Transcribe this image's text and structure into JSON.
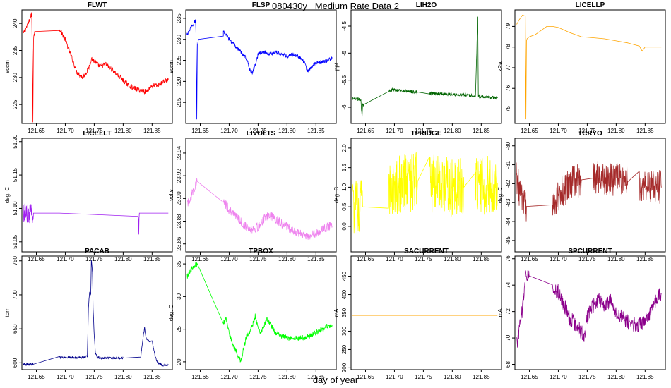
{
  "figure": {
    "title": "080430y   Medium Rate Data 2",
    "xlabel": "day of year"
  },
  "chart_data": [
    {
      "type": "line",
      "title": "FLWT",
      "ylabel": "sccm",
      "color": "#ff0000",
      "xlim": [
        121.625,
        121.885
      ],
      "ylim": [
        221.5,
        242.5
      ],
      "xticks": [
        "121.65",
        "121.70",
        "121.75",
        "121.80",
        "121.85"
      ],
      "yticks": [
        225,
        230,
        235,
        240
      ],
      "x": [
        121.627,
        121.633,
        121.638,
        121.642,
        121.643,
        121.644,
        121.645,
        121.647,
        121.69,
        121.69,
        121.7,
        121.71,
        121.72,
        121.73,
        121.74,
        121.745,
        121.75,
        121.76,
        121.77,
        121.78,
        121.79,
        121.8,
        121.81,
        121.82,
        121.83,
        121.84,
        121.85,
        121.86,
        121.87,
        121.878
      ],
      "y": [
        238,
        239.3,
        240.5,
        241.8,
        234.8,
        222,
        237,
        238.5,
        238.8,
        239,
        237,
        234,
        231,
        230,
        231.5,
        233.5,
        233,
        232,
        232.5,
        231.5,
        230.5,
        229.5,
        228.5,
        228,
        227.6,
        227.4,
        228.5,
        228.5,
        229.3,
        229.5
      ],
      "noise": 0.45
    },
    {
      "type": "line",
      "title": "FLSP",
      "ylabel": "sccm",
      "color": "#0000ff",
      "xlim": [
        121.625,
        121.885
      ],
      "ylim": [
        210,
        237
      ],
      "xticks": [
        "121.65",
        "121.70",
        "121.75",
        "121.80",
        "121.85"
      ],
      "yticks": [
        215,
        220,
        225,
        230,
        235
      ],
      "x": [
        121.627,
        121.633,
        121.638,
        121.642,
        121.643,
        121.644,
        121.645,
        121.647,
        121.69,
        121.69,
        121.7,
        121.71,
        121.72,
        121.73,
        121.735,
        121.74,
        121.745,
        121.75,
        121.76,
        121.77,
        121.78,
        121.79,
        121.8,
        121.81,
        121.82,
        121.83,
        121.835,
        121.84,
        121.85,
        121.86,
        121.87,
        121.878
      ],
      "y": [
        231,
        232.5,
        233.5,
        234.5,
        229,
        211,
        229,
        230,
        231,
        232,
        230,
        228.5,
        227,
        225.5,
        223,
        222,
        224,
        226.5,
        227,
        226.5,
        227,
        226.5,
        226,
        226.5,
        226,
        224.5,
        222.5,
        223,
        224.5,
        224.5,
        225,
        225.5
      ],
      "noise": 0.45
    },
    {
      "type": "line",
      "title": "LIH2O",
      "ylabel": "ppt",
      "color": "#006400",
      "xlim": [
        121.625,
        121.885
      ],
      "ylim": [
        -6.3,
        -4.2
      ],
      "xticks": [
        "121.65",
        "121.70",
        "121.75",
        "121.80",
        "121.85"
      ],
      "yticks": [
        -6.0,
        -5.5,
        -5.0,
        -4.5
      ],
      "x": [
        121.627,
        121.635,
        121.642,
        121.644,
        121.645,
        121.647,
        121.69,
        121.7,
        121.72,
        121.74,
        121.76,
        121.78,
        121.8,
        121.82,
        121.83,
        121.84,
        121.844,
        121.845,
        121.846,
        121.85,
        121.86,
        121.87,
        121.878
      ],
      "y": [
        -5.85,
        -5.85,
        -5.85,
        -6.2,
        -5.95,
        -5.95,
        -5.68,
        -5.68,
        -5.7,
        -5.72,
        -5.74,
        -5.75,
        -5.76,
        -5.77,
        -5.78,
        -5.79,
        -4.32,
        -5.79,
        -5.8,
        -5.8,
        -5.81,
        -5.82,
        -5.83
      ],
      "noise": 0.03
    },
    {
      "type": "line",
      "title": "LICELLP",
      "ylabel": "kPa",
      "color": "#ffa500",
      "xlim": [
        121.625,
        121.885
      ],
      "ylim": [
        74.3,
        79.8
      ],
      "xticks": [
        "121.65",
        "121.70",
        "121.75",
        "121.80",
        "121.85"
      ],
      "yticks": [
        75,
        76,
        77,
        78,
        79
      ],
      "x": [
        121.628,
        121.632,
        121.638,
        121.643,
        121.644,
        121.645,
        121.646,
        121.65,
        121.66,
        121.67,
        121.68,
        121.69,
        121.7,
        121.72,
        121.74,
        121.76,
        121.78,
        121.8,
        121.82,
        121.84,
        121.845,
        121.85,
        121.86,
        121.87,
        121.878
      ],
      "y": [
        79.1,
        79.3,
        79.55,
        79.5,
        74.5,
        78.3,
        78.4,
        78.5,
        78.6,
        78.8,
        79.0,
        79.0,
        78.95,
        78.7,
        78.5,
        78.45,
        78.4,
        78.3,
        78.2,
        78.05,
        77.8,
        78.0,
        78.0,
        78.0,
        78.0
      ],
      "noise": 0
    },
    {
      "type": "line",
      "title": "LICELLT",
      "ylabel": "deg. C",
      "color": "#a020f0",
      "xlim": [
        121.625,
        121.885
      ],
      "ylim": [
        51.035,
        51.205
      ],
      "xticks": [
        "121.65",
        "121.70",
        "121.75",
        "121.80",
        "121.85"
      ],
      "yticks": [
        "51.05",
        "51.10",
        "51.15",
        "51.20"
      ],
      "x": [
        121.627,
        121.645,
        121.69,
        121.826,
        121.827,
        121.828,
        121.878
      ],
      "y": [
        51.093,
        51.093,
        51.093,
        51.093,
        51.06,
        51.093,
        51.093
      ],
      "noise": 0.015
    },
    {
      "type": "line",
      "title": "LIVOLTS",
      "ylabel": "volts",
      "color": "#ee82ee",
      "xlim": [
        121.625,
        121.885
      ],
      "ylim": [
        23.853,
        23.953
      ],
      "xticks": [
        "121.65",
        "121.70",
        "121.75",
        "121.80",
        "121.85"
      ],
      "yticks": [
        "23.86",
        "23.88",
        "23.90",
        "23.92",
        "23.94"
      ],
      "x": [
        121.628,
        121.635,
        121.64,
        121.645,
        121.69,
        121.7,
        121.71,
        121.72,
        121.73,
        121.74,
        121.75,
        121.76,
        121.77,
        121.78,
        121.79,
        121.8,
        121.81,
        121.82,
        121.83,
        121.84,
        121.85,
        121.86,
        121.87,
        121.878
      ],
      "y": [
        23.895,
        23.903,
        23.91,
        23.915,
        23.898,
        23.89,
        23.885,
        23.88,
        23.875,
        23.873,
        23.875,
        23.882,
        23.885,
        23.882,
        23.878,
        23.875,
        23.872,
        23.869,
        23.868,
        23.867,
        23.869,
        23.872,
        23.875,
        23.876
      ],
      "noise": 0.004
    },
    {
      "type": "line",
      "title": "TFRIDGE",
      "ylabel": "deg. C",
      "color": "#ffff00",
      "xlim": [
        121.625,
        121.885
      ],
      "ylim": [
        -0.65,
        2.25
      ],
      "xticks": [
        "121.65",
        "121.70",
        "121.75",
        "121.80",
        "121.85"
      ],
      "yticks": [
        "0.0",
        "0.5",
        "1.0",
        "1.5",
        "2.0"
      ],
      "x": [
        121.627,
        121.645,
        121.69,
        121.7,
        121.72,
        121.74,
        121.76,
        121.78,
        121.8,
        121.82,
        121.84,
        121.86,
        121.878
      ],
      "y": [
        0.5,
        0.5,
        1.0,
        1.05,
        1.1,
        1.15,
        1.1,
        1.05,
        1.0,
        1.0,
        1.05,
        1.05,
        1.1
      ],
      "noise": 0.75
    },
    {
      "type": "line",
      "title": "TCRYO",
      "ylabel": "deg. C",
      "color": "#a52a2a",
      "xlim": [
        121.625,
        121.885
      ],
      "ylim": [
        -85.6,
        -79.6
      ],
      "xticks": [
        "121.65",
        "121.70",
        "121.75",
        "121.80",
        "121.85"
      ],
      "yticks": [
        -85,
        -84,
        -83,
        -82,
        -81,
        -80
      ],
      "x": [
        121.627,
        121.63,
        121.635,
        121.64,
        121.645,
        121.69,
        121.7,
        121.72,
        121.74,
        121.76,
        121.78,
        121.8,
        121.82,
        121.84,
        121.86,
        121.878
      ],
      "y": [
        -81.5,
        -82.0,
        -82.6,
        -83.0,
        -83.2,
        -83.2,
        -82.6,
        -82.0,
        -81.8,
        -81.6,
        -81.7,
        -81.8,
        -81.9,
        -82.0,
        -82.1,
        -82.2
      ],
      "noise": 0.9
    },
    {
      "type": "line",
      "title": "PACAB",
      "ylabel": "torr",
      "color": "#00008b",
      "xlim": [
        121.625,
        121.885
      ],
      "ylim": [
        590,
        757
      ],
      "xticks": [
        "121.65",
        "121.70",
        "121.75",
        "121.80",
        "121.85"
      ],
      "yticks": [
        600,
        650,
        700,
        750
      ],
      "x": [
        121.627,
        121.645,
        121.69,
        121.7,
        121.72,
        121.73,
        121.738,
        121.74,
        121.742,
        121.744,
        121.745,
        121.747,
        121.748,
        121.75,
        121.752,
        121.755,
        121.76,
        121.78,
        121.8,
        121.83,
        121.835,
        121.837,
        121.84,
        121.845,
        121.85,
        121.855,
        121.857,
        121.86,
        121.87,
        121.878
      ],
      "y": [
        598,
        598,
        608,
        608,
        608,
        608,
        610,
        680,
        705,
        700,
        750,
        735,
        680,
        640,
        615,
        608,
        607,
        607,
        607,
        607,
        640,
        652,
        635,
        632,
        632,
        610,
        605,
        600,
        596,
        597
      ],
      "noise": 1.5
    },
    {
      "type": "line",
      "title": "TPBOX",
      "ylabel": "deg. C",
      "color": "#00ff00",
      "xlim": [
        121.625,
        121.885
      ],
      "ylim": [
        18.8,
        36.2
      ],
      "xticks": [
        "121.65",
        "121.70",
        "121.75",
        "121.80",
        "121.85"
      ],
      "yticks": [
        20,
        25,
        30,
        35
      ],
      "x": [
        121.627,
        121.63,
        121.635,
        121.64,
        121.645,
        121.69,
        121.695,
        121.7,
        121.705,
        121.71,
        121.715,
        121.72,
        121.725,
        121.73,
        121.735,
        121.74,
        121.745,
        121.75,
        121.755,
        121.76,
        121.765,
        121.77,
        121.78,
        121.79,
        121.8,
        121.81,
        121.82,
        121.83,
        121.84,
        121.85,
        121.86,
        121.87,
        121.878
      ],
      "y": [
        33.0,
        33.5,
        34.2,
        34.7,
        35.0,
        26.0,
        26.5,
        24.5,
        23.0,
        22.0,
        21.0,
        20.0,
        22.0,
        24.0,
        24.5,
        25.5,
        27.0,
        25.0,
        24.5,
        25.5,
        26.5,
        26.0,
        24.5,
        24.0,
        23.7,
        23.6,
        23.6,
        23.7,
        24.0,
        24.5,
        25.0,
        25.5,
        25.7
      ],
      "noise": 0.4
    },
    {
      "type": "line",
      "title": "SACURRENT",
      "ylabel": "mA",
      "color": "#ffa500",
      "xlim": [
        121.625,
        121.885
      ],
      "ylim": [
        195,
        505
      ],
      "xticks": [
        "121.65",
        "121.70",
        "121.75",
        "121.80",
        "121.85"
      ],
      "yticks": [
        200,
        250,
        300,
        350,
        400,
        450
      ],
      "x": [
        121.627,
        121.878
      ],
      "y": [
        343,
        343
      ],
      "noise": 0
    },
    {
      "type": "line",
      "title": "SPCURRENT",
      "ylabel": "mA",
      "color": "#8b008b",
      "xlim": [
        121.625,
        121.885
      ],
      "ylim": [
        67.6,
        76.2
      ],
      "xticks": [
        "121.65",
        "121.70",
        "121.75",
        "121.80",
        "121.85"
      ],
      "yticks": [
        68,
        70,
        72,
        74,
        76
      ],
      "x": [
        121.628,
        121.632,
        121.636,
        121.64,
        121.643,
        121.645,
        121.65,
        121.69,
        121.7,
        121.71,
        121.72,
        121.73,
        121.74,
        121.745,
        121.75,
        121.76,
        121.77,
        121.78,
        121.79,
        121.8,
        121.81,
        121.82,
        121.83,
        121.84,
        121.85,
        121.86,
        121.87,
        121.878
      ],
      "y": [
        69.5,
        70.5,
        71.5,
        73.0,
        74.5,
        74.8,
        74.7,
        74.0,
        73.5,
        72.5,
        71.5,
        71.0,
        70.5,
        69.8,
        71.5,
        72.5,
        73.0,
        72.5,
        72.8,
        72.0,
        71.5,
        71.2,
        71.0,
        71.0,
        71.2,
        72.0,
        73.0,
        73.3
      ],
      "noise": 0.6
    }
  ]
}
